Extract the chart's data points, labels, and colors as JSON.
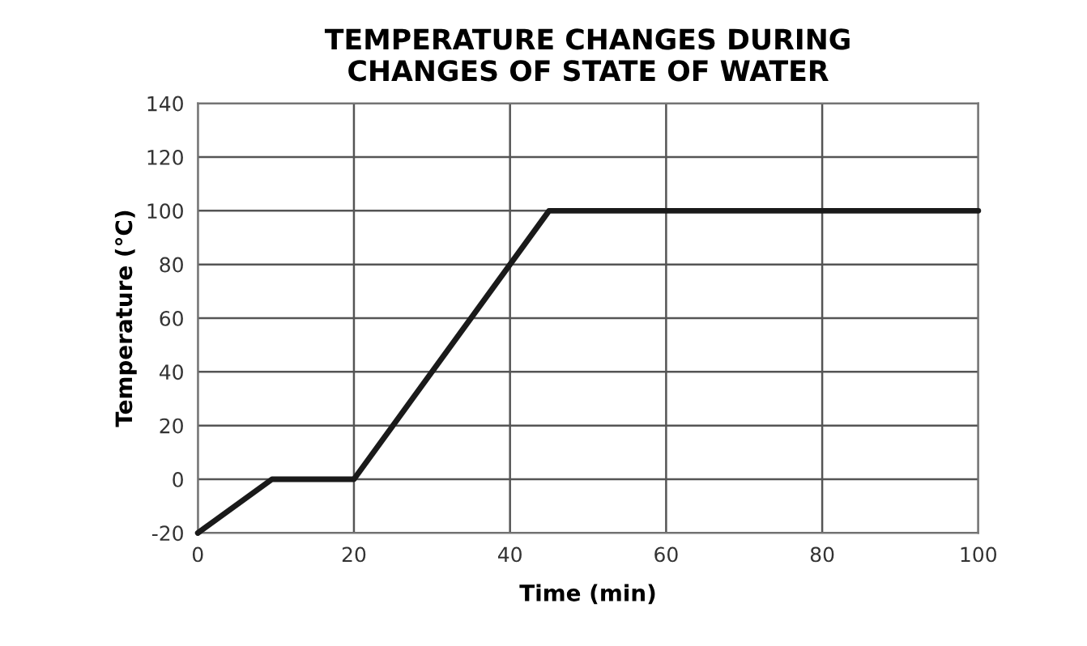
{
  "chart_data": {
    "type": "line",
    "title": "TEMPERATURE CHANGES DURING\nCHANGES OF STATE OF WATER",
    "xlabel": "Time (min)",
    "ylabel": "Temperature (°C)",
    "series": [
      {
        "color": "#1a1a1a",
        "x": [
          0,
          9.5,
          20,
          45,
          100
        ],
        "values": [
          -20,
          0,
          0,
          100,
          100
        ]
      }
    ],
    "xlim": [
      0,
      100
    ],
    "ylim": [
      -20,
      140
    ],
    "xticks": [
      0,
      20,
      40,
      60,
      80,
      100
    ],
    "yticks": [
      -20,
      0,
      20,
      40,
      60,
      80,
      100,
      120,
      140
    ],
    "grid": true,
    "marker": "none",
    "line_style": "solid"
  }
}
